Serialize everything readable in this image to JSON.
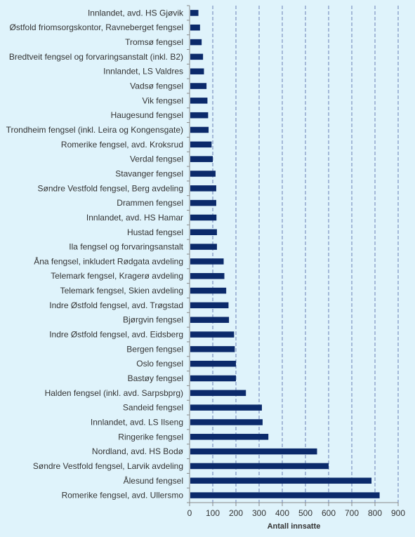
{
  "chart_data": {
    "type": "bar",
    "orientation": "horizontal",
    "xlabel": "Antall innsatte",
    "xlim": [
      0,
      900
    ],
    "xticks": [
      "0",
      "100",
      "200",
      "300",
      "400",
      "500",
      "600",
      "700",
      "800",
      "900"
    ],
    "grid": "vertical dashed",
    "bar_color": "#0b2a6b",
    "background_color": "#dff3fb",
    "grid_color": "#6a7fb4",
    "categories": [
      "Innlandet, avd. HS Gjøvik",
      "Østfold friomsorgskontor, Ravneberget fengsel",
      "Tromsø fengsel",
      "Bredtveit fengsel og forvaringsanstalt (inkl. B2)",
      "Innlandet, LS Valdres",
      "Vadsø fengsel",
      "Vik fengsel",
      "Haugesund fengsel",
      "Trondheim fengsel (inkl. Leira og Kongensgate)",
      "Romerike fengsel, avd. Kroksrud",
      "Verdal fengsel",
      "Stavanger fengsel",
      "Søndre Vestfold fengsel, Berg avdeling",
      "Drammen fengsel",
      "Innlandet, avd. HS Hamar",
      "Hustad fengsel",
      "Ila fengsel og forvaringsanstalt",
      "Åna fengsel, inkludert Rødgata avdeling",
      "Telemark fengsel, Kragerø avdeling",
      "Telemark fengsel, Skien avdeling",
      "Indre Østfold fengsel, avd. Trøgstad",
      "Bjørgvin fengsel",
      "Indre Østfold fengsel, avd. Eidsberg",
      "Bergen fengsel",
      "Oslo fengsel",
      "Bastøy fengsel",
      "Halden fengsel (inkl. avd. Sarpsbprg)",
      "Sandeid fengsel",
      "Innlandet, avd. LS Ilseng",
      "Ringerike fengsel",
      "Nordland, avd. HS Bodø",
      "Søndre Vestfold fengsel, Larvik avdeling",
      "Ålesund fengsel",
      "Romerike fengsel, avd. Ullersmo"
    ],
    "values": [
      38,
      45,
      52,
      58,
      62,
      73,
      77,
      80,
      82,
      95,
      100,
      112,
      115,
      115,
      116,
      118,
      118,
      147,
      150,
      158,
      168,
      170,
      192,
      195,
      200,
      200,
      243,
      312,
      315,
      340,
      550,
      600,
      785,
      820
    ]
  }
}
